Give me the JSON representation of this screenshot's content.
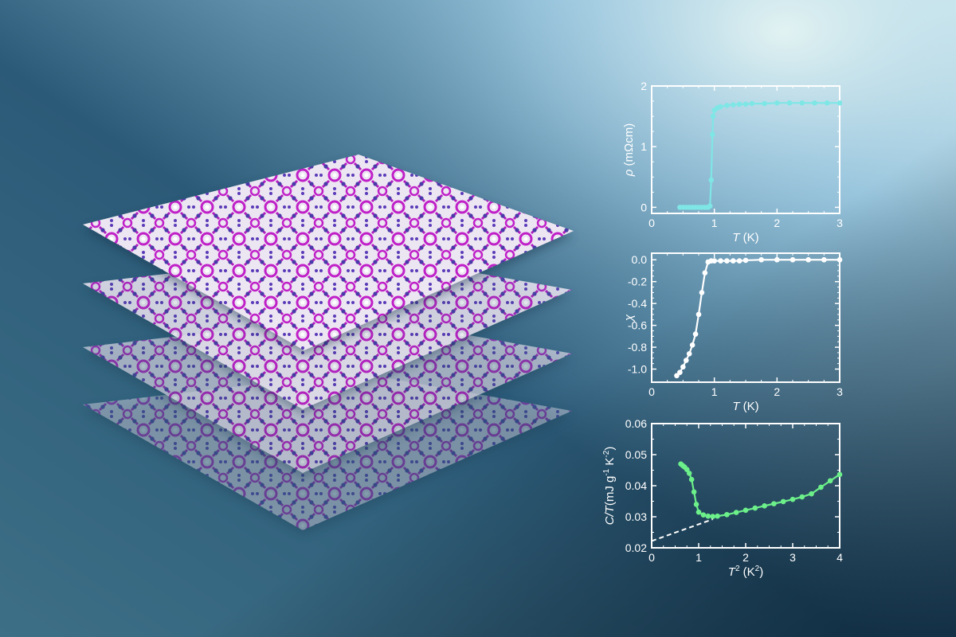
{
  "colors": {
    "bg_dark": "#24506b",
    "bg_light": "#d6eef0",
    "lattice_magenta": "#c020c8",
    "lattice_blue": "#4a3aa8",
    "frame": "#ffffff",
    "resistivity": "#7fe6e6",
    "susceptibility": "#ffffff",
    "heat_capacity": "#6cf08a"
  },
  "chart_data": [
    {
      "type": "line",
      "xlabel_symbol": "T",
      "xlabel_unit": " (K)",
      "ylabel_symbol": "ρ",
      "ylabel_unit": " (mΩcm)",
      "xlim": [
        0,
        3
      ],
      "ylim": [
        -0.1,
        2.0
      ],
      "xticks": [
        "0",
        "1",
        "2",
        "3"
      ],
      "yticks": [
        "0",
        "1",
        "2"
      ],
      "series": [
        {
          "values": [
            [
              0.45,
              0.0
            ],
            [
              0.5,
              0.0
            ],
            [
              0.55,
              0.0
            ],
            [
              0.6,
              0.0
            ],
            [
              0.65,
              0.0
            ],
            [
              0.7,
              0.0
            ],
            [
              0.75,
              0.0
            ],
            [
              0.8,
              0.0
            ],
            [
              0.85,
              0.0
            ],
            [
              0.9,
              0.0
            ],
            [
              0.93,
              0.02
            ],
            [
              0.95,
              0.45
            ],
            [
              0.97,
              1.2
            ],
            [
              0.98,
              1.5
            ],
            [
              1.0,
              1.6
            ],
            [
              1.05,
              1.64
            ],
            [
              1.1,
              1.66
            ],
            [
              1.2,
              1.68
            ],
            [
              1.3,
              1.69
            ],
            [
              1.4,
              1.7
            ],
            [
              1.5,
              1.7
            ],
            [
              1.6,
              1.71
            ],
            [
              1.8,
              1.71
            ],
            [
              2.0,
              1.72
            ],
            [
              2.2,
              1.72
            ],
            [
              2.4,
              1.72
            ],
            [
              2.6,
              1.72
            ],
            [
              2.8,
              1.72
            ],
            [
              3.0,
              1.72
            ]
          ]
        }
      ]
    },
    {
      "type": "line",
      "xlabel_symbol": "T",
      "xlabel_unit": " (K)",
      "ylabel_symbol": "χ",
      "ylabel_unit": "",
      "xlim": [
        0,
        3
      ],
      "ylim": [
        -1.12,
        0.06
      ],
      "xticks": [
        "0",
        "1",
        "2",
        "3"
      ],
      "yticks": [
        "0.0",
        "-0.2",
        "-0.4",
        "-0.6",
        "-0.8",
        "-1.0"
      ],
      "series": [
        {
          "values": [
            [
              0.4,
              -1.06
            ],
            [
              0.45,
              -1.03
            ],
            [
              0.5,
              -0.98
            ],
            [
              0.55,
              -0.92
            ],
            [
              0.6,
              -0.86
            ],
            [
              0.65,
              -0.78
            ],
            [
              0.7,
              -0.68
            ],
            [
              0.75,
              -0.5
            ],
            [
              0.8,
              -0.3
            ],
            [
              0.85,
              -0.12
            ],
            [
              0.9,
              -0.02
            ],
            [
              0.95,
              -0.01
            ],
            [
              1.0,
              -0.01
            ],
            [
              1.1,
              -0.01
            ],
            [
              1.2,
              -0.01
            ],
            [
              1.3,
              -0.01
            ],
            [
              1.4,
              -0.01
            ],
            [
              1.5,
              -0.005
            ],
            [
              1.75,
              0.0
            ],
            [
              2.0,
              0.0
            ],
            [
              2.25,
              0.0
            ],
            [
              2.5,
              0.0
            ],
            [
              2.75,
              0.0
            ],
            [
              3.0,
              0.0
            ]
          ]
        }
      ]
    },
    {
      "type": "line",
      "xlabel_symbol": "T",
      "xlabel_sup": "2",
      "xlabel_unit": " (K",
      "xlabel_unit_sup": "2",
      "xlabel_close": ")",
      "ylabel_symbol": "C/T",
      "ylabel_unit": "(mJ g",
      "ylabel_unit_sup1": "-1",
      "ylabel_unit_mid": " K",
      "ylabel_unit_sup2": "-2",
      "ylabel_close": ")",
      "xlim": [
        0,
        4
      ],
      "ylim": [
        0.02,
        0.06
      ],
      "xticks": [
        "0",
        "1",
        "2",
        "3",
        "4"
      ],
      "yticks": [
        "0.02",
        "0.03",
        "0.04",
        "0.05",
        "0.06"
      ],
      "series": [
        {
          "values": [
            [
              0.62,
              0.047
            ],
            [
              0.66,
              0.0465
            ],
            [
              0.7,
              0.046
            ],
            [
              0.75,
              0.0452
            ],
            [
              0.8,
              0.044
            ],
            [
              0.85,
              0.042
            ],
            [
              0.9,
              0.038
            ],
            [
              0.95,
              0.034
            ],
            [
              1.0,
              0.0315
            ],
            [
              1.1,
              0.0306
            ],
            [
              1.2,
              0.0302
            ],
            [
              1.3,
              0.0301
            ],
            [
              1.4,
              0.0302
            ],
            [
              1.6,
              0.0307
            ],
            [
              1.8,
              0.0314
            ],
            [
              2.0,
              0.0321
            ],
            [
              2.2,
              0.0328
            ],
            [
              2.4,
              0.0335
            ],
            [
              2.6,
              0.0342
            ],
            [
              2.8,
              0.0349
            ],
            [
              3.0,
              0.0356
            ],
            [
              3.2,
              0.0364
            ],
            [
              3.4,
              0.0374
            ],
            [
              3.6,
              0.0395
            ],
            [
              3.8,
              0.0416
            ],
            [
              4.0,
              0.0436
            ]
          ]
        },
        {
          "style": "dashed",
          "values": [
            [
              0.0,
              0.0222
            ],
            [
              1.3,
              0.0292
            ]
          ]
        }
      ]
    }
  ]
}
